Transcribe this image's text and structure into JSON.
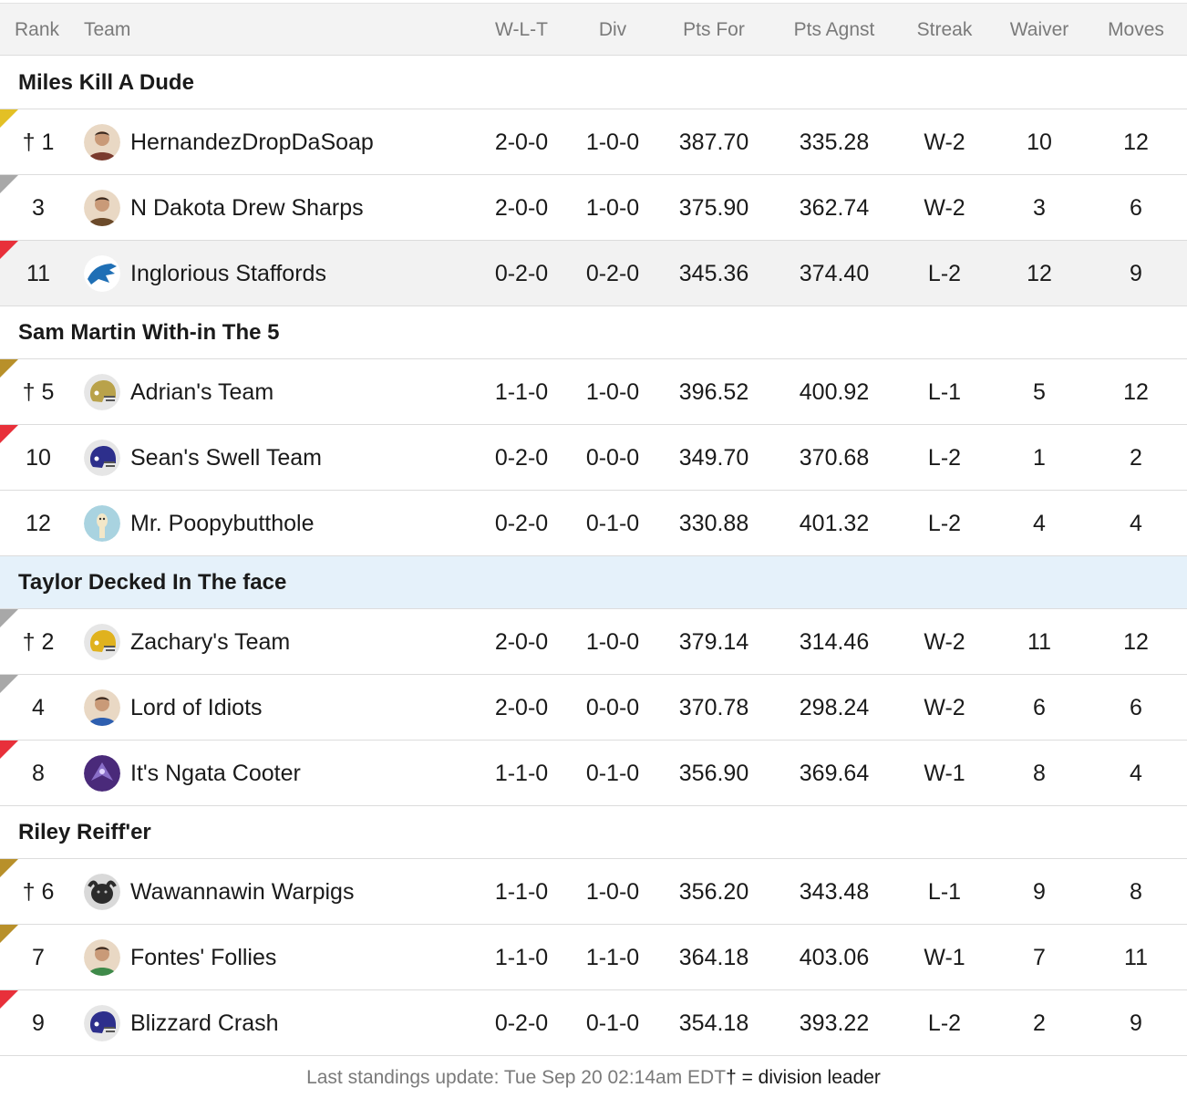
{
  "header": {
    "rank": "Rank",
    "team": "Team",
    "wlt": "W-L-T",
    "div": "Div",
    "pts_for": "Pts For",
    "pts_agnst": "Pts Agnst",
    "streak": "Streak",
    "waiver": "Waiver",
    "moves": "Moves"
  },
  "divisions": [
    {
      "name": "Miles Kill A Dude",
      "highlight": false,
      "teams": [
        {
          "rank": "† 1",
          "team": "HernandezDropDaSoap",
          "wlt": "2-0-0",
          "div": "1-0-0",
          "pts_for": "387.70",
          "pts_agnst": "335.28",
          "streak": "W-2",
          "waiver": "10",
          "moves": "12",
          "ribbon": "gold",
          "avatar": "person-icon",
          "avatar_color": "#7a3b2e",
          "shaded": false
        },
        {
          "rank": "3",
          "team": "N Dakota Drew Sharps",
          "wlt": "2-0-0",
          "div": "1-0-0",
          "pts_for": "375.90",
          "pts_agnst": "362.74",
          "streak": "W-2",
          "waiver": "3",
          "moves": "6",
          "ribbon": "gray",
          "avatar": "person-icon",
          "avatar_color": "#6b4a2a",
          "shaded": false
        },
        {
          "rank": "11",
          "team": "Inglorious Staffords",
          "wlt": "0-2-0",
          "div": "0-2-0",
          "pts_for": "345.36",
          "pts_agnst": "374.40",
          "streak": "L-2",
          "waiver": "12",
          "moves": "9",
          "ribbon": "red",
          "avatar": "lion-icon",
          "avatar_color": "#1f6fb5",
          "shaded": true
        }
      ]
    },
    {
      "name": "Sam Martin With-in The 5",
      "highlight": false,
      "teams": [
        {
          "rank": "† 5",
          "team": "Adrian's Team",
          "wlt": "1-1-0",
          "div": "1-0-0",
          "pts_for": "396.52",
          "pts_agnst": "400.92",
          "streak": "L-1",
          "waiver": "5",
          "moves": "12",
          "ribbon": "bronze",
          "avatar": "helmet-icon",
          "avatar_color": "#b9a24a",
          "shaded": false
        },
        {
          "rank": "10",
          "team": "Sean's Swell Team",
          "wlt": "0-2-0",
          "div": "0-0-0",
          "pts_for": "349.70",
          "pts_agnst": "370.68",
          "streak": "L-2",
          "waiver": "1",
          "moves": "2",
          "ribbon": "red",
          "avatar": "helmet-icon",
          "avatar_color": "#2d2f8c",
          "shaded": false
        },
        {
          "rank": "12",
          "team": "Mr. Poopybutthole",
          "wlt": "0-2-0",
          "div": "0-1-0",
          "pts_for": "330.88",
          "pts_agnst": "401.32",
          "streak": "L-2",
          "waiver": "4",
          "moves": "4",
          "ribbon": "none",
          "avatar": "character-icon",
          "avatar_color": "#a9d3e0",
          "shaded": false
        }
      ]
    },
    {
      "name": "Taylor Decked In The face",
      "highlight": true,
      "teams": [
        {
          "rank": "† 2",
          "team": "Zachary's Team",
          "wlt": "2-0-0",
          "div": "1-0-0",
          "pts_for": "379.14",
          "pts_agnst": "314.46",
          "streak": "W-2",
          "waiver": "11",
          "moves": "12",
          "ribbon": "gray",
          "avatar": "helmet-icon",
          "avatar_color": "#e0b21e",
          "shaded": false
        },
        {
          "rank": "4",
          "team": "Lord of Idiots",
          "wlt": "2-0-0",
          "div": "0-0-0",
          "pts_for": "370.78",
          "pts_agnst": "298.24",
          "streak": "W-2",
          "waiver": "6",
          "moves": "6",
          "ribbon": "gray",
          "avatar": "person-icon",
          "avatar_color": "#2e5fb0",
          "shaded": false
        },
        {
          "rank": "8",
          "team": "It's Ngata Cooter",
          "wlt": "1-1-0",
          "div": "0-1-0",
          "pts_for": "356.90",
          "pts_agnst": "369.64",
          "streak": "W-1",
          "waiver": "8",
          "moves": "4",
          "ribbon": "red",
          "avatar": "raven-icon",
          "avatar_color": "#4a2a7a",
          "shaded": false
        }
      ]
    },
    {
      "name": "Riley Reiff'er",
      "highlight": false,
      "teams": [
        {
          "rank": "† 6",
          "team": "Wawannawin Warpigs",
          "wlt": "1-1-0",
          "div": "1-0-0",
          "pts_for": "356.20",
          "pts_agnst": "343.48",
          "streak": "L-1",
          "waiver": "9",
          "moves": "8",
          "ribbon": "bronze",
          "avatar": "animal-icon",
          "avatar_color": "#2b2b2b",
          "shaded": false
        },
        {
          "rank": "7",
          "team": "Fontes' Follies",
          "wlt": "1-1-0",
          "div": "1-1-0",
          "pts_for": "364.18",
          "pts_agnst": "403.06",
          "streak": "W-1",
          "waiver": "7",
          "moves": "11",
          "ribbon": "bronze",
          "avatar": "person-icon",
          "avatar_color": "#3f8a4a",
          "shaded": false
        },
        {
          "rank": "9",
          "team": "Blizzard Crash",
          "wlt": "0-2-0",
          "div": "0-1-0",
          "pts_for": "354.18",
          "pts_agnst": "393.22",
          "streak": "L-2",
          "waiver": "2",
          "moves": "9",
          "ribbon": "red",
          "avatar": "helmet-icon",
          "avatar_color": "#2d2f8c",
          "shaded": false
        }
      ]
    }
  ],
  "footer": {
    "update": "Last standings update: Tue Sep 20 02:14am EDT",
    "legend": "† = division leader"
  }
}
